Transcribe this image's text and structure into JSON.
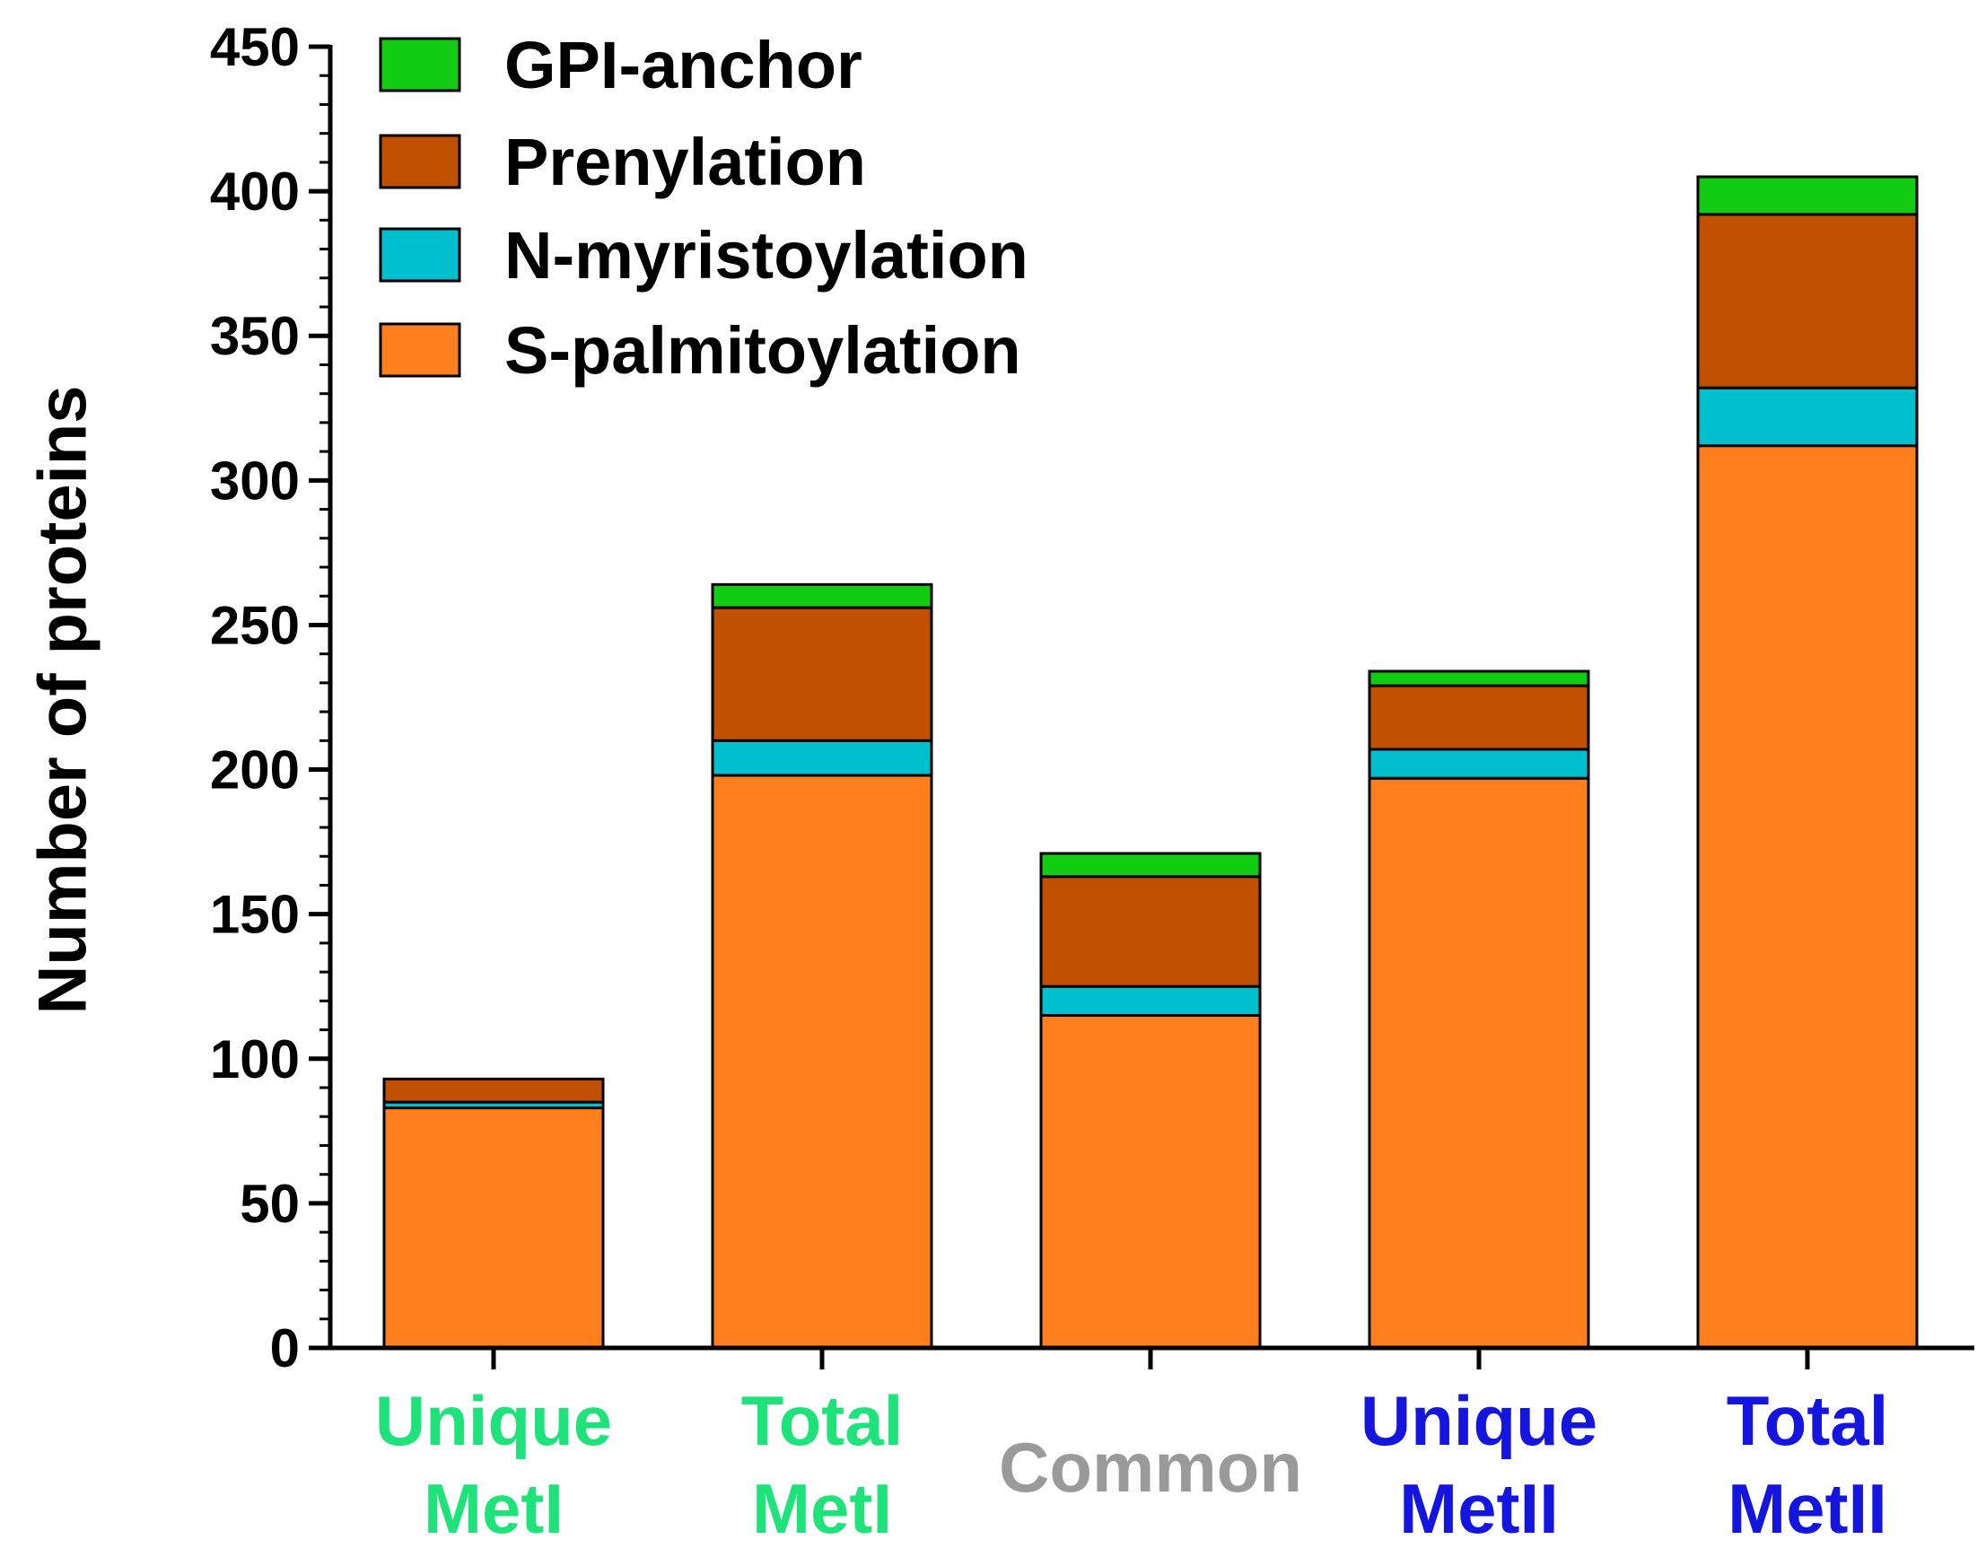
{
  "chart_data": {
    "type": "bar",
    "stacked": true,
    "title": "",
    "xlabel": "",
    "ylabel": "Number of proteins",
    "ylim": [
      0,
      450
    ],
    "yticks": [
      0,
      50,
      100,
      150,
      200,
      250,
      300,
      350,
      400,
      450
    ],
    "categories": [
      {
        "lines": [
          "Unique",
          "MetI"
        ],
        "color": "#1ee27a"
      },
      {
        "lines": [
          "Total",
          "MetI"
        ],
        "color": "#1ee27a"
      },
      {
        "lines": [
          "Common"
        ],
        "color": "#9a9a9a"
      },
      {
        "lines": [
          "Unique",
          "MetII"
        ],
        "color": "#1515e0"
      },
      {
        "lines": [
          "Total",
          "MetII"
        ],
        "color": "#1515e0"
      }
    ],
    "series": [
      {
        "name": "S-palmitoylation",
        "color": "#ff7f1e",
        "values": [
          83,
          198,
          115,
          197,
          312
        ]
      },
      {
        "name": "N-myristoylation",
        "color": "#00c0cf",
        "values": [
          2,
          12,
          10,
          10,
          20
        ]
      },
      {
        "name": "Prenylation",
        "color": "#c05000",
        "values": [
          8,
          46,
          38,
          22,
          60
        ]
      },
      {
        "name": "GPI-anchor",
        "color": "#11cc11",
        "values": [
          0,
          8,
          8,
          5,
          13
        ]
      }
    ],
    "legend_order": [
      "GPI-anchor",
      "Prenylation",
      "N-myristoylation",
      "S-palmitoylation"
    ],
    "legend_position": "top-left"
  }
}
